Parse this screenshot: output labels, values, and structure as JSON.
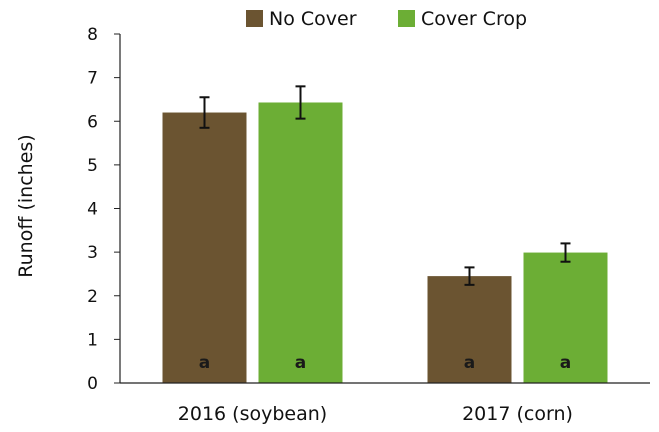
{
  "chart_data": {
    "type": "bar",
    "title": "",
    "xlabel": "",
    "ylabel": "Runoff (inches)",
    "ylim": [
      0,
      8
    ],
    "yticks": [
      0,
      1,
      2,
      3,
      4,
      5,
      6,
      7,
      8
    ],
    "categories": [
      "2016 (soybean)",
      "2017 (corn)"
    ],
    "series": [
      {
        "name": "No Cover",
        "color": "#6b5431",
        "values": [
          6.2,
          2.45
        ],
        "error": [
          0.35,
          0.2
        ],
        "labels": [
          "a",
          "a"
        ]
      },
      {
        "name": "Cover Crop",
        "color": "#6cae35",
        "values": [
          6.43,
          2.99
        ],
        "error": [
          0.37,
          0.21
        ],
        "labels": [
          "a",
          "a"
        ]
      }
    ],
    "legend_position": "top",
    "grid": false
  }
}
